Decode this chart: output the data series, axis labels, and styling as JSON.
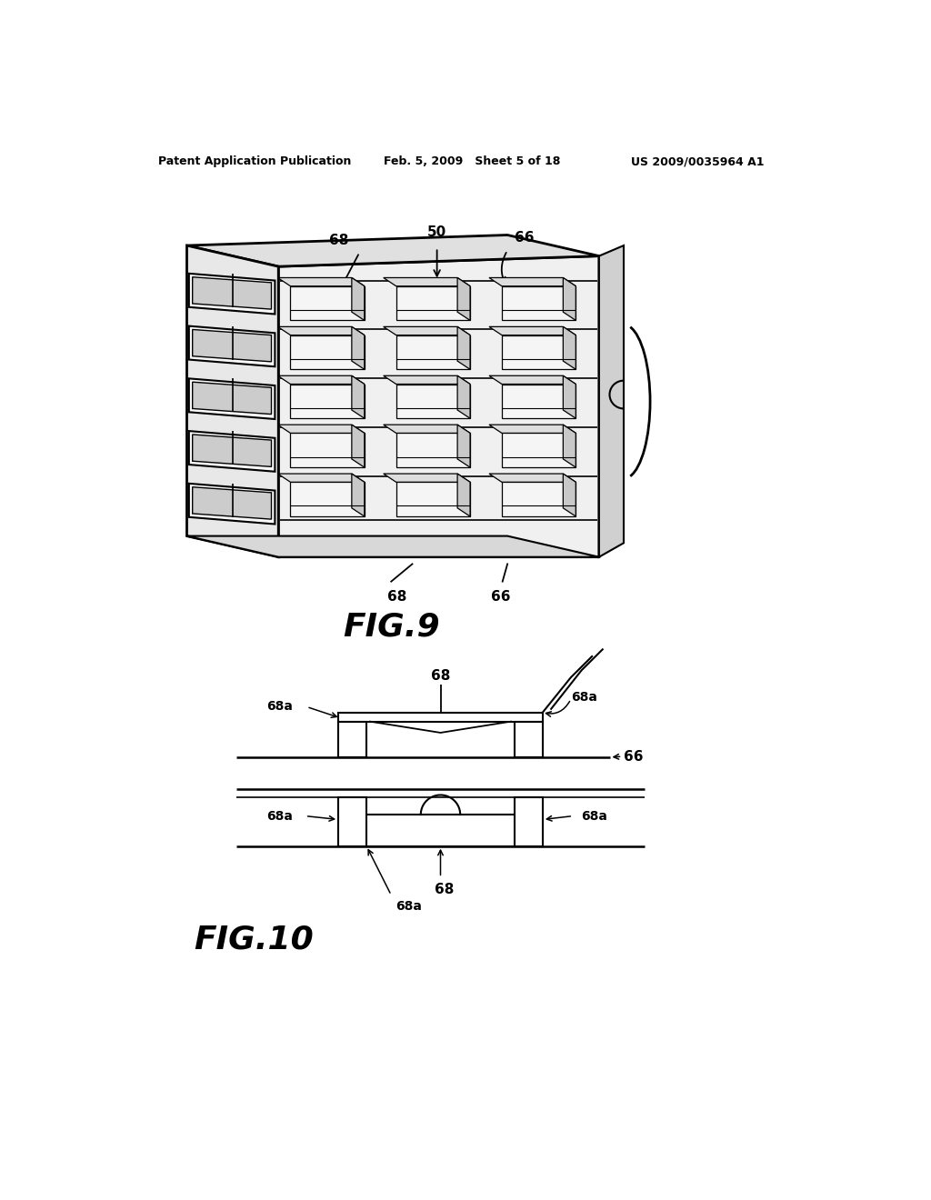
{
  "background_color": "#ffffff",
  "header_left": "Patent Application Publication",
  "header_mid": "Feb. 5, 2009   Sheet 5 of 18",
  "header_right": "US 2009/0035964 A1",
  "fig9_title": "FIG.9",
  "fig10_title": "FIG.10",
  "line_color": "#000000"
}
